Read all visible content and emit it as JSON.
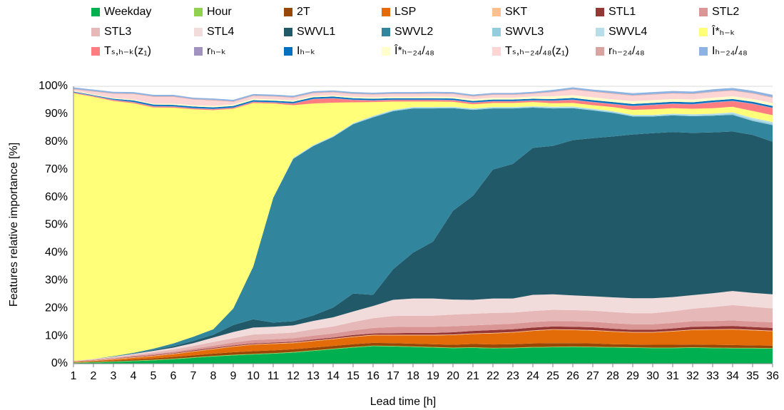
{
  "chart_data": {
    "type": "stacked-area",
    "x_label": "Lead time [h]",
    "y_label": "Features relative importance [%]",
    "x": [
      1,
      2,
      3,
      4,
      5,
      6,
      7,
      8,
      9,
      10,
      11,
      12,
      13,
      14,
      15,
      16,
      17,
      18,
      19,
      20,
      21,
      22,
      23,
      24,
      25,
      26,
      27,
      28,
      29,
      30,
      31,
      32,
      33,
      34,
      35,
      36
    ],
    "xlim": [
      1,
      36
    ],
    "ylim": [
      0,
      100
    ],
    "yticks": [
      {
        "value": 0,
        "label": "0%"
      },
      {
        "value": 10,
        "label": "10%"
      },
      {
        "value": 20,
        "label": "20%"
      },
      {
        "value": 30,
        "label": "30%"
      },
      {
        "value": 40,
        "label": "40%"
      },
      {
        "value": 50,
        "label": "50%"
      },
      {
        "value": 60,
        "label": "60%"
      },
      {
        "value": 70,
        "label": "70%"
      },
      {
        "value": 80,
        "label": "80%"
      },
      {
        "value": 90,
        "label": "90%"
      },
      {
        "value": 100,
        "label": "100%"
      }
    ],
    "grid": true,
    "legend": "top",
    "series": [
      {
        "name": "Weekday",
        "color": "#00b050",
        "values": [
          0.2,
          0.4,
          0.6,
          0.9,
          1.2,
          1.6,
          2.1,
          2.6,
          3,
          3.3,
          3.6,
          4,
          4.6,
          5.2,
          5.8,
          6.3,
          6.2,
          6,
          5.8,
          5.6,
          5.7,
          5.5,
          5.6,
          5.8,
          5.9,
          6,
          5.9,
          5.8,
          5.7,
          5.6,
          5.6,
          5.7,
          5.6,
          5.5,
          5.5,
          5.4
        ]
      },
      {
        "name": "Hour",
        "color": "#92d050",
        "values": [
          0.2,
          0.2,
          0.2,
          0.2,
          0.2,
          0.2,
          0.2,
          0.2,
          0.2,
          0.2,
          0.2,
          0.2,
          0.2,
          0.2,
          0.2,
          0.2,
          0.2,
          0.2,
          0.2,
          0.2,
          0.2,
          0.2,
          0.2,
          0.2,
          0.2,
          0.2,
          0.2,
          0.2,
          0.2,
          0.2,
          0.2,
          0.2,
          0.2,
          0.2,
          0.2,
          0.2
        ]
      },
      {
        "name": "2T",
        "color": "#974706",
        "values": [
          0.1,
          0.2,
          0.3,
          0.4,
          0.5,
          0.6,
          0.7,
          0.8,
          0.9,
          1,
          1,
          1,
          1,
          1,
          1,
          1,
          1,
          1,
          1,
          1,
          1.2,
          1.2,
          1.2,
          1.3,
          1.3,
          1.2,
          1.2,
          1,
          1,
          1,
          1,
          1,
          1,
          1,
          0.9,
          0.9
        ]
      },
      {
        "name": "LSP",
        "color": "#e36c09",
        "values": [
          0.1,
          0.2,
          0.4,
          0.6,
          0.8,
          1,
          1.3,
          1.6,
          2,
          2.3,
          2.3,
          2.2,
          2.3,
          2.4,
          2.6,
          2.7,
          2.8,
          3,
          3.2,
          3.5,
          3.6,
          4,
          4.2,
          4.5,
          4.8,
          4.7,
          4.6,
          4.5,
          4.3,
          4.4,
          4.8,
          5.2,
          5.4,
          5.6,
          5.4,
          5.2
        ]
      },
      {
        "name": "SKT",
        "color": "#fac090",
        "values": [
          0.2,
          0.2,
          0.2,
          0.2,
          0.2,
          0.2,
          0.2,
          0.2,
          0.2,
          0.2,
          0.2,
          0.2,
          0.2,
          0.2,
          0.2,
          0.2,
          0.2,
          0.2,
          0.2,
          0.2,
          0.2,
          0.2,
          0.2,
          0.2,
          0.2,
          0.2,
          0.2,
          0.2,
          0.2,
          0.2,
          0.2,
          0.2,
          0.2,
          0.2,
          0.2,
          0.2
        ]
      },
      {
        "name": "STL1",
        "color": "#953735",
        "values": [
          0.1,
          0.1,
          0.1,
          0.2,
          0.2,
          0.2,
          0.3,
          0.3,
          0.3,
          0.3,
          0.3,
          0.3,
          0.4,
          0.4,
          0.5,
          0.5,
          0.6,
          0.7,
          0.7,
          0.8,
          0.9,
          1,
          1,
          1,
          1,
          1,
          1,
          0.9,
          0.8,
          0.8,
          0.9,
          1,
          1,
          1.1,
          1,
          1
        ]
      },
      {
        "name": "STL2",
        "color": "#d99694",
        "values": [
          0,
          0.1,
          0.2,
          0.3,
          0.4,
          0.5,
          0.6,
          0.8,
          1,
          1.2,
          1.2,
          1.3,
          1.4,
          1.5,
          1.7,
          2,
          2.2,
          2.2,
          2.2,
          2.2,
          2,
          2,
          2,
          2,
          2,
          2,
          2,
          2,
          2,
          2,
          2,
          2,
          2,
          2,
          2,
          2
        ]
      },
      {
        "name": "STL3",
        "color": "#e6b9b8",
        "values": [
          0.1,
          0.2,
          0.3,
          0.4,
          0.6,
          0.8,
          1,
          1.3,
          1.6,
          2,
          2,
          2,
          2.3,
          2.5,
          3,
          3.5,
          4,
          4,
          4,
          4.2,
          4.2,
          4.2,
          4,
          4,
          4,
          4,
          4,
          4,
          4,
          4,
          4.2,
          4.5,
          5,
          5.5,
          5.3,
          5
        ]
      },
      {
        "name": "STL4",
        "color": "#f2dcdb",
        "values": [
          0,
          0.1,
          0.2,
          0.3,
          0.5,
          0.7,
          1,
          1.6,
          2.2,
          2.5,
          2.5,
          2.6,
          3,
          3.3,
          3.8,
          4.4,
          5.8,
          6.2,
          6.2,
          5.4,
          5,
          5.2,
          5.1,
          5.8,
          5.6,
          5.3,
          5.2,
          5.3,
          5.4,
          5.4,
          5.1,
          4.9,
          5,
          5.1,
          5,
          5.1
        ]
      },
      {
        "name": "SWVL1",
        "color": "#215968",
        "values": [
          0,
          0,
          0,
          0.1,
          0.3,
          0.5,
          0.8,
          1,
          2.5,
          3,
          1.5,
          1.5,
          2,
          3.5,
          6.5,
          4,
          11,
          16.5,
          20.5,
          32,
          37.5,
          46.5,
          48.5,
          53,
          53.5,
          56,
          57,
          58,
          59,
          59.5,
          59.5,
          58.5,
          58,
          57.5,
          57,
          55
        ]
      },
      {
        "name": "SWVL2",
        "color": "#31859c",
        "values": [
          0,
          0,
          0.2,
          0.3,
          0.5,
          1,
          1.5,
          2,
          6,
          19,
          45,
          58.5,
          61,
          61.5,
          61,
          64,
          57,
          52,
          48,
          37,
          31,
          22,
          20,
          14.5,
          13.5,
          11.5,
          10,
          8.5,
          6.5,
          6,
          6,
          6,
          6,
          6,
          5,
          6
        ]
      },
      {
        "name": "SWVL3",
        "color": "#93cddd",
        "values": [
          0,
          0,
          0,
          0,
          0,
          0,
          0,
          0,
          0,
          0,
          0,
          0.2,
          0.2,
          0.2,
          0.2,
          0.3,
          0.3,
          0.3,
          0.3,
          0.3,
          0.3,
          0.3,
          0.3,
          0.3,
          0.3,
          0.3,
          0.3,
          0.3,
          0.3,
          0.3,
          0.3,
          0.3,
          0.3,
          0.4,
          0.5,
          0.5
        ]
      },
      {
        "name": "SWVL4",
        "color": "#b7dee8",
        "values": [
          0,
          0,
          0,
          0,
          0,
          0,
          0,
          0,
          0,
          0,
          0,
          0.2,
          0.2,
          0.2,
          0.2,
          0.2,
          0.2,
          0.2,
          0.2,
          0.2,
          0.2,
          0.2,
          0.2,
          0.2,
          0.3,
          0.3,
          0.3,
          0.3,
          0.3,
          0.3,
          0.3,
          0.4,
          0.4,
          0.5,
          0.6,
          0.6
        ]
      },
      {
        "name": "Î*ₕ₋ₖ",
        "color": "#ffff79",
        "values": [
          96.5,
          94.5,
          92,
          90,
          87,
          85,
          82,
          79,
          72,
          59,
          34,
          19,
          15,
          12,
          7.5,
          5,
          3,
          2,
          2,
          1.8,
          1.5,
          1.5,
          1.5,
          1.5,
          1.3,
          1.3,
          1.3,
          1.5,
          1.8,
          2,
          2,
          2,
          2,
          2,
          2.5,
          2.5
        ]
      },
      {
        "name": "Tₛ,ₕ₋ₖ(z₁)",
        "color": "#ff7c80",
        "values": [
          0.2,
          0.2,
          0.3,
          0.3,
          0.3,
          0.3,
          0.3,
          0.3,
          0.3,
          0.3,
          0.3,
          0.5,
          1.5,
          1.5,
          0.8,
          0.5,
          0.5,
          0.5,
          0.5,
          0.5,
          0.5,
          0.5,
          0.5,
          0.5,
          0.8,
          1,
          1,
          1,
          1.3,
          1.5,
          1.5,
          1.5,
          2,
          2,
          2.5,
          2.5
        ]
      },
      {
        "name": "rₕ₋ₖ",
        "color": "#a093c0",
        "values": [
          0.2,
          0.2,
          0.2,
          0.2,
          0.2,
          0.2,
          0.2,
          0.2,
          0.2,
          0.2,
          0.2,
          0.2,
          0.2,
          0.2,
          0.2,
          0.2,
          0.2,
          0.2,
          0.2,
          0.2,
          0.2,
          0.2,
          0.2,
          0.2,
          0.2,
          0.2,
          0.2,
          0.2,
          0.2,
          0.2,
          0.2,
          0.2,
          0.2,
          0.2,
          0.2,
          0.2
        ]
      },
      {
        "name": "Iₕ₋ₖ",
        "color": "#0070c0",
        "values": [
          0.2,
          0.2,
          0.3,
          0.5,
          0.5,
          0.5,
          0.5,
          0.5,
          0.5,
          0.5,
          0.5,
          0.5,
          0.5,
          0.5,
          0.5,
          0.5,
          0.5,
          0.5,
          0.5,
          0.5,
          0.5,
          0.5,
          0.5,
          0.5,
          0.5,
          0.6,
          0.6,
          0.6,
          0.6,
          0.6,
          0.6,
          0.6,
          0.6,
          0.6,
          0.6,
          0.6
        ]
      },
      {
        "name": "Î*ₕ₋₂₄/₄₈",
        "color": "#ffffcc",
        "values": [
          0.3,
          0.3,
          0.3,
          0.3,
          0.3,
          0.4,
          0.5,
          0.5,
          0.5,
          0.5,
          0.5,
          0.5,
          0.5,
          0.5,
          0.5,
          0.5,
          0.5,
          0.5,
          0.6,
          0.6,
          0.6,
          0.7,
          0.7,
          0.8,
          1,
          1,
          1,
          1,
          1,
          1,
          1,
          1,
          1,
          1,
          1,
          1
        ]
      },
      {
        "name": "Tₛ,ₕ₋₂₄/₄₈(z₁)",
        "color": "#fcd5d4",
        "values": [
          0.5,
          1,
          1.5,
          2,
          2.5,
          2.5,
          2,
          2,
          1,
          1,
          1,
          1,
          1,
          1,
          1,
          1,
          1,
          1,
          1,
          1,
          1,
          1,
          1,
          1,
          1.5,
          2,
          2,
          2,
          2,
          2,
          2,
          2,
          2,
          2,
          2,
          2
        ]
      },
      {
        "name": "rₕ₋₂₄/₄₈",
        "color": "#d9a3a2",
        "values": [
          0.2,
          0.2,
          0.2,
          0.2,
          0.2,
          0.2,
          0.2,
          0.2,
          0.2,
          0.2,
          0.2,
          0.2,
          0.2,
          0.2,
          0.2,
          0.2,
          0.2,
          0.2,
          0.2,
          0.2,
          0.2,
          0.2,
          0.2,
          0.2,
          0.2,
          0.2,
          0.2,
          0.2,
          0.2,
          0.2,
          0.2,
          0.2,
          0.2,
          0.2,
          0.2,
          0.2
        ]
      },
      {
        "name": "Iₕ₋₂₄/₄₈",
        "color": "#8db3e2",
        "values": [
          0.5,
          0.5,
          0.5,
          0.5,
          0.5,
          0.5,
          0.5,
          0.5,
          0.5,
          0.5,
          0.5,
          0.5,
          0.5,
          0.5,
          0.5,
          0.5,
          0.5,
          0.5,
          0.5,
          0.5,
          0.5,
          0.5,
          0.5,
          0.5,
          0.6,
          0.6,
          0.6,
          0.7,
          0.7,
          0.7,
          0.7,
          0.7,
          0.8,
          0.8,
          0.8,
          0.8
        ]
      }
    ]
  }
}
